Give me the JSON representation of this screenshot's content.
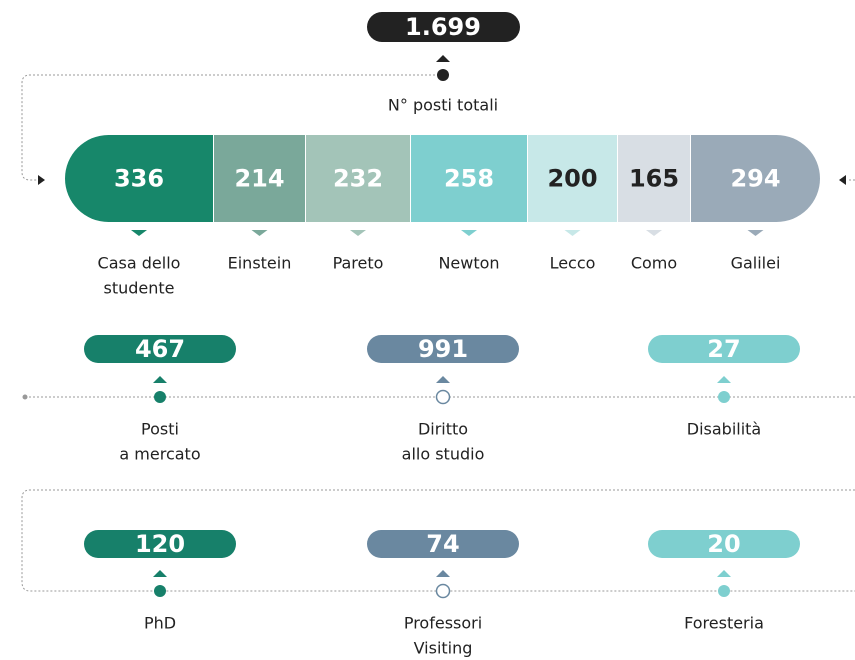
{
  "header": {
    "total": "1.699",
    "total_label": "N° posti totali"
  },
  "segments": [
    {
      "value": 336,
      "label": [
        "Casa dello",
        "studente"
      ],
      "color": "#17876a",
      "text_color": "#ffffff"
    },
    {
      "value": 214,
      "label": [
        "Einstein"
      ],
      "color": "#7aa89a",
      "text_color": "#ffffff"
    },
    {
      "value": 232,
      "label": [
        "Pareto"
      ],
      "color": "#a3c4b8",
      "text_color": "#ffffff"
    },
    {
      "value": 258,
      "label": [
        "Newton"
      ],
      "color": "#7ecfcf",
      "text_color": "#ffffff"
    },
    {
      "value": 200,
      "label": [
        "Lecco"
      ],
      "color": "#c7e8e8",
      "text_color": "#222222"
    },
    {
      "value": 165,
      "label": [
        "Como"
      ],
      "color": "#d8dee4",
      "text_color": "#222222"
    },
    {
      "value": 294,
      "label": [
        "Galilei"
      ],
      "color": "#9aaab8",
      "text_color": "#ffffff"
    }
  ],
  "rows": [
    [
      {
        "value": 467,
        "label": [
          "Posti",
          "a mercato"
        ],
        "color": "#17806a"
      },
      {
        "value": 991,
        "label": [
          "Diritto",
          "allo studio"
        ],
        "color": "#6a88a0"
      },
      {
        "value": 27,
        "label": [
          "Disabilità"
        ],
        "color": "#7ecfcf"
      }
    ],
    [
      {
        "value": 120,
        "label": [
          "PhD"
        ],
        "color": "#17806a"
      },
      {
        "value": 74,
        "label": [
          "Professori",
          "Visiting"
        ],
        "color": "#6a88a0"
      },
      {
        "value": 20,
        "label": [
          "Foresteria"
        ],
        "color": "#7ecfcf"
      }
    ]
  ]
}
